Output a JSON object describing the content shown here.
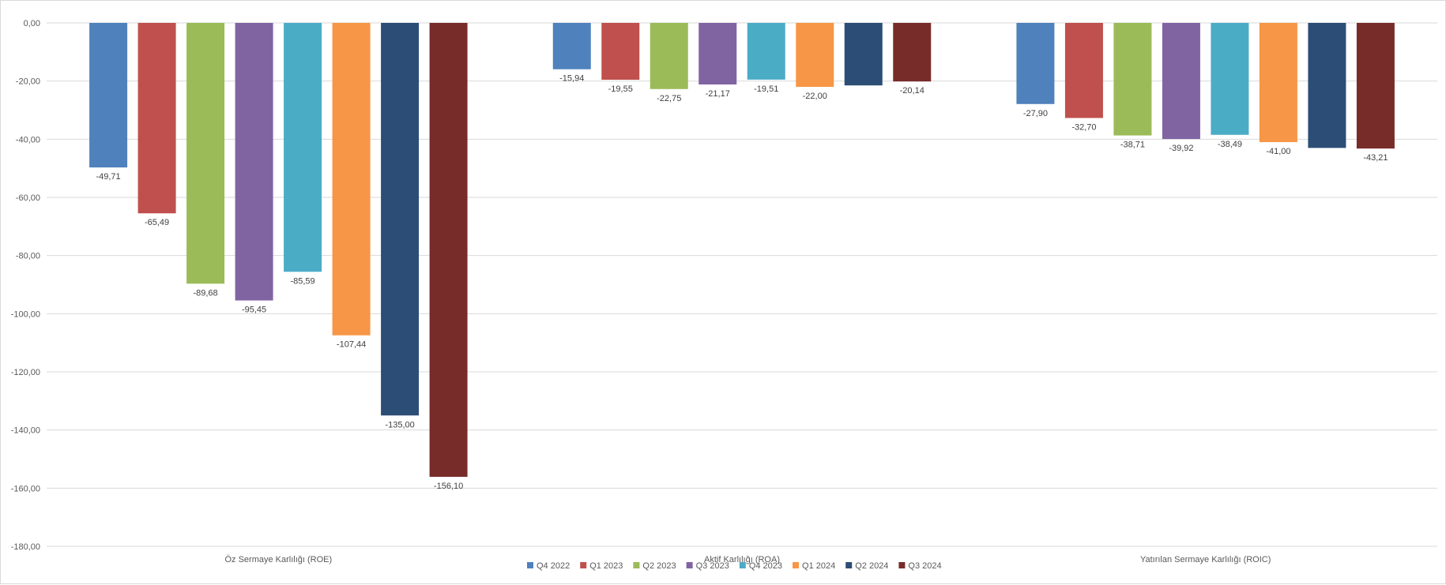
{
  "chart_data": {
    "type": "bar",
    "categories": [
      "Öz Sermaye Karlılığı (ROE)",
      "Aktif Karlılığı (ROA)",
      "Yatırılan Sermaye Karlılığı (ROIC)"
    ],
    "ylim": [
      -180,
      0
    ],
    "yticks": [
      0,
      -20,
      -40,
      -60,
      -80,
      -100,
      -120,
      -140,
      -160,
      -180
    ],
    "ytick_labels": [
      "0,00",
      "-20,00",
      "-40,00",
      "-60,00",
      "-80,00",
      "-100,00",
      "-120,00",
      "-140,00",
      "-160,00",
      "-180,00"
    ],
    "grid": true,
    "legend_position": "bottom",
    "series": [
      {
        "name": "Q4 2022",
        "color": "#4f81bd",
        "values": [
          -49.71,
          -15.94,
          -27.9
        ],
        "labels": [
          "-49,71",
          "-15,94",
          "-27,90"
        ]
      },
      {
        "name": "Q1 2023",
        "color": "#c0504d",
        "values": [
          -65.49,
          -19.55,
          -32.7
        ],
        "labels": [
          "-65,49",
          "-19,55",
          "-32,70"
        ]
      },
      {
        "name": "Q2 2023",
        "color": "#9bbb59",
        "values": [
          -89.68,
          -22.75,
          -38.71
        ],
        "labels": [
          "-89,68",
          "-22,75",
          "-38,71"
        ]
      },
      {
        "name": "Q3 2023",
        "color": "#8064a2",
        "values": [
          -95.45,
          -21.17,
          -39.92
        ],
        "labels": [
          "-95,45",
          "-21,17",
          "-39,92"
        ]
      },
      {
        "name": "Q4 2023",
        "color": "#4bacc6",
        "values": [
          -85.59,
          -19.51,
          -38.49
        ],
        "labels": [
          "-85,59",
          "-19,51",
          "-38,49"
        ]
      },
      {
        "name": "Q1 2024",
        "color": "#f79646",
        "values": [
          -107.44,
          -22.0,
          -41.0
        ],
        "labels": [
          "-107,44",
          "-22,00",
          "-41,00"
        ]
      },
      {
        "name": "Q2 2024",
        "color": "#2c4d75",
        "values": [
          -135.0,
          -21.5,
          -43.0
        ],
        "labels": [
          "-135,00",
          "",
          ""
        ]
      },
      {
        "name": "Q3 2024",
        "color": "#772c2a",
        "values": [
          -156.1,
          -20.14,
          -43.21
        ],
        "labels": [
          "-156,10",
          "-20,14",
          "-43,21"
        ]
      }
    ]
  }
}
